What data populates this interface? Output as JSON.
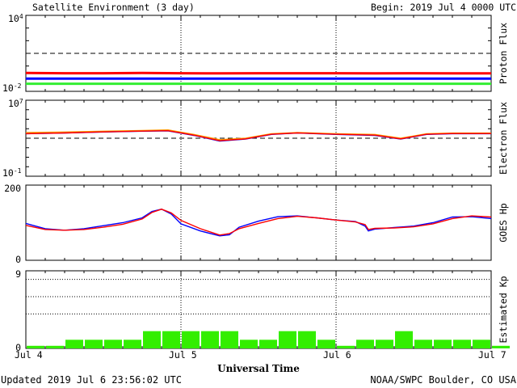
{
  "header": {
    "title": "Satellite Environment (3 day)",
    "begin": "Begin:  2019 Jul 4 0000 UTC"
  },
  "footer": {
    "updated": "Updated 2019 Jul  6 23:56:02 UTC",
    "source": "NOAA/SWPC Boulder, CO USA"
  },
  "x_axis": {
    "title": "Universal Time",
    "tick_labels": [
      "Jul 4",
      "Jul 5",
      "Jul 6",
      "Jul 7"
    ]
  },
  "colors": {
    "red": "#ff0000",
    "blue": "#0000ff",
    "green": "#33ee33",
    "orange": "#ff9900",
    "kp_bar": "#33ee00",
    "dashed": "#000000"
  },
  "chart_data": [
    {
      "id": "proton",
      "type": "line",
      "ylabel": "Proton Flux",
      "yscale": "log",
      "ylim": [
        0.01,
        10000
      ],
      "tick_labels": {
        "top_base": "10",
        "top_exp": "4",
        "bottom_base": "10",
        "bottom_exp": "-2"
      },
      "threshold": 10,
      "xlim_hours": [
        0,
        72
      ],
      "series": [
        {
          "color": "red",
          "x": [
            0,
            6,
            12,
            18,
            24,
            30,
            36,
            42,
            48,
            54,
            60,
            66,
            72
          ],
          "y": [
            0.28,
            0.27,
            0.27,
            0.28,
            0.27,
            0.26,
            0.27,
            0.27,
            0.27,
            0.26,
            0.27,
            0.26,
            0.26
          ]
        },
        {
          "color": "blue",
          "x": [
            0,
            6,
            12,
            18,
            24,
            30,
            36,
            42,
            48,
            54,
            60,
            66,
            72
          ],
          "y": [
            0.1,
            0.1,
            0.1,
            0.1,
            0.1,
            0.1,
            0.1,
            0.1,
            0.1,
            0.1,
            0.1,
            0.1,
            0.1
          ]
        },
        {
          "color": "green",
          "x": [
            0,
            6,
            12,
            18,
            24,
            30,
            36,
            42,
            48,
            54,
            60,
            66,
            72
          ],
          "y": [
            0.04,
            0.04,
            0.04,
            0.04,
            0.04,
            0.04,
            0.04,
            0.04,
            0.04,
            0.04,
            0.04,
            0.04,
            0.04
          ]
        }
      ]
    },
    {
      "id": "electron",
      "type": "line",
      "ylabel": "Electron Flux",
      "yscale": "log",
      "ylim": [
        0.1,
        10000000
      ],
      "tick_labels": {
        "top_base": "10",
        "top_exp": "7",
        "bottom_base": "10",
        "bottom_exp": "-1"
      },
      "threshold": 1000,
      "xlim_hours": [
        0,
        72
      ],
      "series": [
        {
          "color": "orange",
          "x": [
            0,
            6,
            12,
            18,
            22,
            26,
            30,
            34,
            38,
            42,
            48,
            54,
            58,
            62,
            66,
            72
          ],
          "y": [
            4000,
            4500,
            5500,
            6500,
            7500,
            2500,
            700,
            1000,
            3000,
            4000,
            3000,
            2500,
            1000,
            3000,
            3500,
            3500
          ]
        },
        {
          "color": "blue",
          "x": [
            0,
            6,
            12,
            18,
            22,
            26,
            30,
            34,
            38,
            42,
            48,
            54,
            58,
            62,
            66,
            72
          ],
          "y": [
            3000,
            3500,
            4500,
            5500,
            6000,
            2000,
            500,
            800,
            2500,
            3500,
            2500,
            2000,
            800,
            2500,
            3000,
            3000
          ]
        },
        {
          "color": "red",
          "x": [
            0,
            6,
            12,
            18,
            22,
            26,
            30,
            34,
            38,
            42,
            48,
            54,
            58,
            62,
            66,
            72
          ],
          "y": [
            3000,
            3600,
            4600,
            5600,
            6200,
            2100,
            550,
            850,
            2600,
            3600,
            2600,
            2100,
            850,
            2600,
            3100,
            3100
          ]
        }
      ]
    },
    {
      "id": "hp",
      "type": "line",
      "ylabel": "GOES Hp",
      "ylim": [
        0,
        200
      ],
      "tick_labels": [
        "200",
        "0"
      ],
      "xlim_hours": [
        0,
        72
      ],
      "series": [
        {
          "color": "blue",
          "x": [
            0,
            3,
            6,
            9,
            12,
            15,
            18,
            19.5,
            21,
            22.5,
            24,
            27,
            30,
            31.5,
            33,
            36,
            39,
            42,
            45,
            48,
            51,
            52.5,
            53,
            54,
            57,
            60,
            63,
            66,
            69,
            72
          ],
          "y": [
            98,
            84,
            80,
            84,
            92,
            100,
            113,
            130,
            136,
            123,
            97,
            78,
            65,
            68,
            88,
            104,
            116,
            118,
            113,
            107,
            103,
            91,
            78,
            83,
            87,
            91,
            100,
            115,
            116,
            111
          ]
        },
        {
          "color": "red",
          "x": [
            0,
            3,
            6,
            9,
            12,
            15,
            18,
            19.5,
            21,
            22.5,
            24,
            27,
            30,
            31.5,
            33,
            36,
            39,
            42,
            45,
            48,
            51,
            52.5,
            53,
            54,
            57,
            60,
            63,
            66,
            69,
            72
          ],
          "y": [
            93,
            82,
            80,
            82,
            88,
            96,
            110,
            127,
            136,
            126,
            106,
            84,
            67,
            71,
            84,
            98,
            111,
            117,
            113,
            107,
            102,
            95,
            82,
            85,
            86,
            89,
            97,
            111,
            118,
            115
          ]
        }
      ]
    },
    {
      "id": "kp",
      "type": "bar",
      "ylabel": "Estimated Kp",
      "ylim": [
        0,
        9
      ],
      "tick_labels": [
        "9",
        "0"
      ],
      "grid_levels": [
        4,
        6,
        8
      ],
      "bar_width_hours": 3,
      "values": [
        0.3,
        0.3,
        1,
        1,
        1,
        1,
        2,
        2,
        2,
        2,
        2,
        1,
        1,
        2,
        2,
        1,
        0.3,
        1,
        1,
        2,
        1,
        1,
        1,
        1,
        0.3
      ]
    }
  ]
}
